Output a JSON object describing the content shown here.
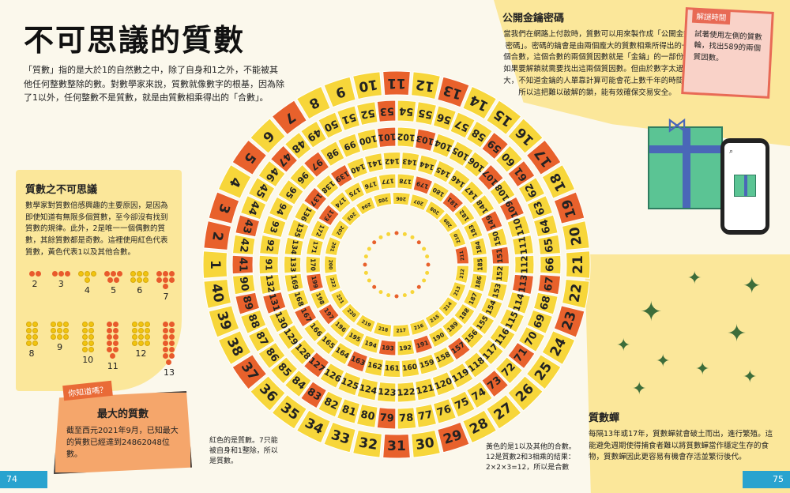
{
  "title": "不可思議的質數",
  "intro": "「質數」指的是大於1的自然數之中，除了自身和1之外，不能被其他任何整數整除的數。對數學家來說，質數就像數字的根基，因為除了1以外，任何整數不是質數，就是由質數相乘得出的「合數」。",
  "mystery": {
    "heading": "質數之不可思議",
    "text": "數學家對質數倍感興趣的主要原因，是因為即使知道有無限多個質數，至今卻沒有找到質數的規律。此外，2是唯一一個偶數的質數，其餘質數都是奇數。這裡使用紅色代表質數，黃色代表1以及其他合數。",
    "dot_labels_top": [
      "2",
      "3",
      "4",
      "5",
      "6",
      "7"
    ],
    "dot_labels_bottom": [
      "8",
      "9",
      "10",
      "11",
      "12",
      "13"
    ]
  },
  "did_you_know": {
    "tag": "你知道嗎？",
    "heading": "最大的質數",
    "text": "截至西元2021年9月，已知最大的質數已經達到24862048位數。"
  },
  "lock": {
    "heading": "公開金鑰密碼",
    "text": "當我們在網路上付款時，質數可以用來製作成「公開金鑰密碼」。密碼的鑰會是由兩個龐大的質數相乘所得出的一個合數，這個合數的兩個質因數就是「金鑰」的一部份，如果要解鎖就需要找出這兩個質因數。但由於數字太過龐大，不知道金鑰的人單靠計算可能會花上數千年的時間，所以這把難以破解的鎖，能有效確保交易安全。"
  },
  "puzzle": {
    "tag": "解謎時間",
    "text": "試著使用左側的質數輪，找出589的兩個質因數。"
  },
  "cicada": {
    "heading": "質數蟬",
    "text": "每隔13年或17年，質數蟬就會破土而出，進行繁殖。這能避免週期使得捕食者難以將質數蟬當作穩定生存的食物，質數蟬因此更容易有機會存活並繁衍後代。"
  },
  "note_red": "紅色的是質數。7只能被自身和1整除，所以是質數。",
  "note_yellow": "黃色的是1以及其他的合數。12是質數2和3相乘的結果：2×2×3=12，所以是合數",
  "page_left": "74",
  "page_right": "75",
  "colors": {
    "prime": "#e8612c",
    "composite": "#f7d63a",
    "accent_blue": "#29a3cf"
  },
  "wheel": {
    "rings": [
      {
        "start": 1,
        "end": 40
      },
      {
        "start": 41,
        "end": 90
      },
      {
        "start": 91,
        "end": 132
      },
      {
        "start": 133,
        "end": 169
      },
      {
        "start": 170,
        "end": 199
      },
      {
        "start": 200,
        "end": 222
      }
    ]
  }
}
